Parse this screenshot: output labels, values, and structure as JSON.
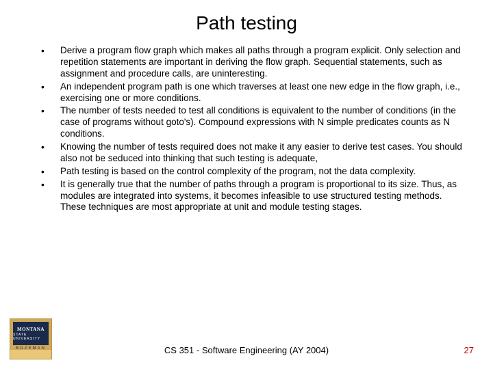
{
  "title": {
    "text": "Path testing",
    "fontsize": 28,
    "color": "#000000"
  },
  "bullets": {
    "fontsize": 13.5,
    "color": "#000000",
    "items": [
      "Derive a program flow graph which makes all paths through a program explicit.  Only selection and repetition statements are important in deriving the flow graph.  Sequential statements, such as assignment and procedure calls, are uninteresting.",
      "An independent program path is one which traverses at least one new edge in the flow graph, i.e., exercising one or more conditions.",
      "The number of tests needed to test all conditions is equivalent to the number of conditions (in the case of programs without goto's).  Compound expressions with N simple predicates counts as N conditions.",
      "Knowing the number of tests required does not make it any easier to derive test cases.  You should also not be seduced into thinking that such testing is adequate,",
      "Path testing is based on the control complexity of the program, not the data complexity.",
      "It is generally true that the number of paths through a program is proportional to its size.  Thus, as modules are integrated into systems, it becomes infeasible to use structured testing methods.  These techniques are most appropriate at unit and module testing stages."
    ]
  },
  "logo": {
    "top_text": "MONTANA",
    "state_text": "STATE UNIVERSITY",
    "bottom_text": "BOZEMAN"
  },
  "footer": {
    "text": "CS 351 - Software Engineering (AY 2004)",
    "fontsize": 13,
    "color": "#000000"
  },
  "page": {
    "number": "27",
    "fontsize": 13,
    "color": "#c00000"
  }
}
